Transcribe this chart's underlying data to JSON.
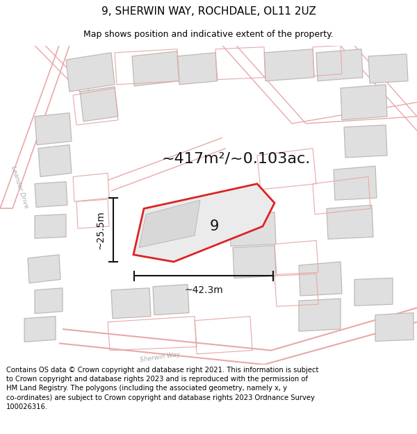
{
  "title": "9, SHERWIN WAY, ROCHDALE, OL11 2UZ",
  "subtitle": "Map shows position and indicative extent of the property.",
  "footer": "Contains OS data © Crown copyright and database right 2021. This information is subject to Crown copyright and database rights 2023 and is reproduced with the permission of HM Land Registry. The polygons (including the associated geometry, namely x, y co-ordinates) are subject to Crown copyright and database rights 2023 Ordnance Survey 100026316.",
  "area_label": "~417m²/~0.103ac.",
  "width_label": "~42.3m",
  "height_label": "~25.5m",
  "plot_number": "9",
  "map_bg_color": "#f7f2f2",
  "building_fill": "#e0dfdf",
  "building_edge": "#c0b8b8",
  "pink_line": "#e8a8a8",
  "red_plot": "#dd2222",
  "dim_color": "#111111",
  "road_label_color": "#aaaaaa",
  "title_fontsize": 11,
  "subtitle_fontsize": 9,
  "footer_fontsize": 7.2,
  "area_fontsize": 16,
  "dim_fontsize": 10,
  "num_fontsize": 15
}
